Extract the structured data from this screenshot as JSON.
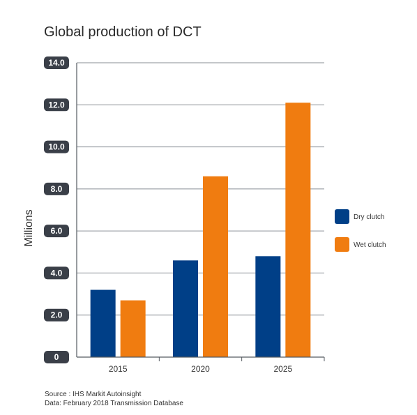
{
  "chart_data": {
    "type": "bar",
    "title": "Global production of DCT",
    "ylabel": "Millions",
    "xlabel": "",
    "categories": [
      "2015",
      "2020",
      "2025"
    ],
    "series": [
      {
        "name": "Dry clutch",
        "color": "#003f87",
        "values": [
          3.2,
          4.6,
          4.8
        ]
      },
      {
        "name": "Wet clutch",
        "color": "#f07c10",
        "values": [
          2.7,
          8.6,
          12.1
        ]
      }
    ],
    "ylim": [
      0,
      14
    ],
    "yticks": [
      "0",
      "2.0",
      "4.0",
      "6.0",
      "8.0",
      "10.0",
      "12.0",
      "14.0"
    ],
    "grid": true,
    "legend_position": "right"
  },
  "source": {
    "line1": "Source : IHS Markit Autoinsight",
    "line2": "Data: February 2018 Transmission Database"
  }
}
